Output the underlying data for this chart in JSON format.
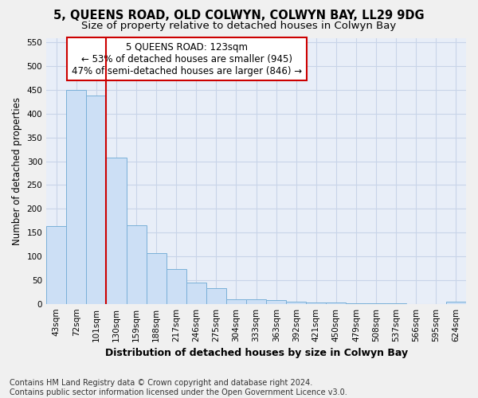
{
  "title": "5, QUEENS ROAD, OLD COLWYN, COLWYN BAY, LL29 9DG",
  "subtitle": "Size of property relative to detached houses in Colwyn Bay",
  "xlabel": "Distribution of detached houses by size in Colwyn Bay",
  "ylabel": "Number of detached properties",
  "categories": [
    "43sqm",
    "72sqm",
    "101sqm",
    "130sqm",
    "159sqm",
    "188sqm",
    "217sqm",
    "246sqm",
    "275sqm",
    "304sqm",
    "333sqm",
    "363sqm",
    "392sqm",
    "421sqm",
    "450sqm",
    "479sqm",
    "508sqm",
    "537sqm",
    "566sqm",
    "595sqm",
    "624sqm"
  ],
  "values": [
    163,
    450,
    438,
    307,
    165,
    107,
    74,
    44,
    33,
    10,
    10,
    8,
    5,
    3,
    2,
    1,
    1,
    1,
    0,
    0,
    4
  ],
  "bar_color": "#ccdff5",
  "bar_edge_color": "#7ab0d8",
  "red_line_x": 2.5,
  "annotation_line1": "5 QUEENS ROAD: 123sqm",
  "annotation_line2": "← 53% of detached houses are smaller (945)",
  "annotation_line3": "47% of semi-detached houses are larger (846) →",
  "annotation_box_facecolor": "#ffffff",
  "annotation_box_edgecolor": "#cc0000",
  "footer_line1": "Contains HM Land Registry data © Crown copyright and database right 2024.",
  "footer_line2": "Contains public sector information licensed under the Open Government Licence v3.0.",
  "ylim": [
    0,
    560
  ],
  "yticks": [
    0,
    50,
    100,
    150,
    200,
    250,
    300,
    350,
    400,
    450,
    500,
    550
  ],
  "grid_color": "#c8d4e8",
  "fig_facecolor": "#f0f0f0",
  "ax_facecolor": "#e8eef8",
  "title_fontsize": 10.5,
  "subtitle_fontsize": 9.5,
  "xlabel_fontsize": 9,
  "ylabel_fontsize": 8.5,
  "tick_fontsize": 7.5,
  "annotation_fontsize": 8.5,
  "footer_fontsize": 7
}
